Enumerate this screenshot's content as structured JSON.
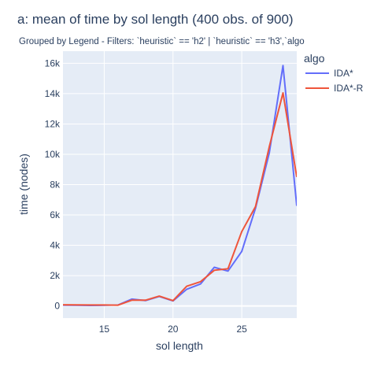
{
  "chart_data": {
    "type": "line",
    "title": "a: mean of time   by sol length (400 obs. of 900)",
    "subtitle": "Grouped by Legend - Filters: `heuristic` == 'h2' | `heuristic` == 'h3',`algo",
    "xlabel": "sol length",
    "ylabel": "time (nodes)",
    "xlim": [
      12,
      29
    ],
    "ylim": [
      -800,
      16800
    ],
    "x_ticks": [
      15,
      20,
      25
    ],
    "x_tick_labels": [
      "15",
      "20",
      "25"
    ],
    "y_ticks": [
      0,
      2000,
      4000,
      6000,
      8000,
      10000,
      12000,
      14000,
      16000
    ],
    "y_tick_labels": [
      "0",
      "2k",
      "4k",
      "6k",
      "8k",
      "10k",
      "12k",
      "14k",
      "16k"
    ],
    "grid": true,
    "legend": {
      "title": "algo",
      "position": "top-right"
    },
    "x": [
      12,
      13,
      14,
      15,
      16,
      17,
      18,
      19,
      20,
      21,
      22,
      23,
      24,
      25,
      26,
      27,
      28,
      29
    ],
    "series": [
      {
        "name": "IDA*",
        "color": "#636efa",
        "values": [
          50,
          40,
          30,
          40,
          60,
          450,
          350,
          620,
          330,
          1100,
          1450,
          2550,
          2300,
          3600,
          6450,
          10100,
          15850,
          6600
        ]
      },
      {
        "name": "IDA*-R",
        "color": "#ef553b",
        "values": [
          80,
          70,
          60,
          60,
          50,
          380,
          380,
          650,
          350,
          1300,
          1600,
          2350,
          2450,
          4900,
          6550,
          10500,
          14050,
          8500
        ]
      }
    ]
  }
}
